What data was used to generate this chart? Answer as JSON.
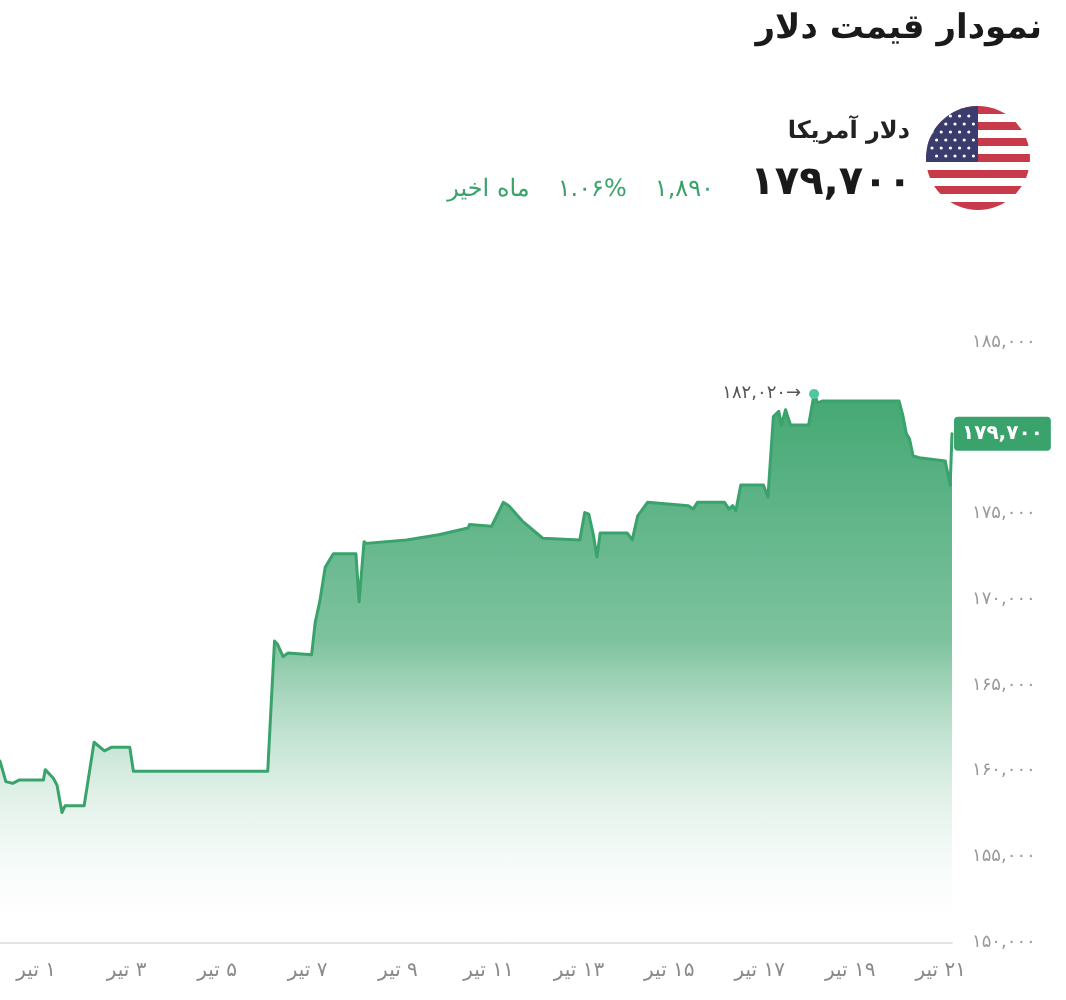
{
  "chart_data": {
    "type": "area",
    "title": "نمودار قیمت دلار",
    "subtitle": "دلار آمریکا",
    "x": [
      0.2,
      0.33,
      0.48,
      0.63,
      1.16,
      1.2,
      1.38,
      1.46,
      1.57,
      1.64,
      2.06,
      2.28,
      2.51,
      2.66,
      3.07,
      3.15,
      6.12,
      6.19,
      6.27,
      6.34,
      6.46,
      6.57,
      7.09,
      7.17,
      7.27,
      7.39,
      7.57,
      8.07,
      8.14,
      8.25,
      8.29,
      9.19,
      9.9,
      10.55,
      10.58,
      11.07,
      11.33,
      11.45,
      11.75,
      12.2,
      13.02,
      13.13,
      13.22,
      13.32,
      13.4,
      13.47,
      14.07,
      14.18,
      14.3,
      14.52,
      15.42,
      15.53,
      15.62,
      16.22,
      16.32,
      16.4,
      16.47,
      16.58,
      17.08,
      17.18,
      17.3,
      17.42,
      17.48,
      17.57,
      17.68,
      18.08,
      18.2,
      18.28,
      18.38,
      20.08,
      20.16,
      20.24,
      20.31,
      20.39,
      20.53,
      21.1,
      21.21,
      21.25
    ],
    "values": [
      160600,
      159400,
      159300,
      159500,
      159500,
      160100,
      159600,
      159200,
      157600,
      158000,
      158000,
      161700,
      161200,
      161400,
      161400,
      160000,
      160000,
      163600,
      167600,
      167400,
      166700,
      166900,
      166800,
      168700,
      169900,
      171900,
      172700,
      172700,
      169900,
      173400,
      173300,
      173500,
      173800,
      174200,
      174400,
      174300,
      175700,
      175500,
      174600,
      173600,
      173500,
      175100,
      175000,
      173800,
      172500,
      173900,
      173900,
      173500,
      174900,
      175700,
      175500,
      175300,
      175700,
      175700,
      175300,
      175500,
      175200,
      176700,
      176700,
      176000,
      180700,
      181000,
      180200,
      181100,
      180200,
      180200,
      182020,
      181500,
      181600,
      181600,
      180800,
      179700,
      179400,
      178400,
      178300,
      178100,
      176700,
      179700
    ],
    "color": "#3aa36c",
    "marker": "none",
    "xlim": [
      0.2,
      21.25
    ],
    "xticks": [
      {
        "value": 1,
        "label": "۱ تیر"
      },
      {
        "value": 3,
        "label": "۳ تیر"
      },
      {
        "value": 5,
        "label": "۵ تیر"
      },
      {
        "value": 7,
        "label": "۷ تیر"
      },
      {
        "value": 9,
        "label": "۹ تیر"
      },
      {
        "value": 11,
        "label": "۱۱ تیر"
      },
      {
        "value": 13,
        "label": "۱۳ تیر"
      },
      {
        "value": 15,
        "label": "۱۵ تیر"
      },
      {
        "value": 17,
        "label": "۱۷ تیر"
      },
      {
        "value": 19,
        "label": "۱۹ تیر"
      },
      {
        "value": 21,
        "label": "۲۱ تیر"
      }
    ],
    "ylim": [
      150000,
      185000
    ],
    "yticks": [
      {
        "value": 150000,
        "label": "۱۵۰,۰۰۰"
      },
      {
        "value": 155000,
        "label": "۱۵۵,۰۰۰"
      },
      {
        "value": 160000,
        "label": "۱۶۰,۰۰۰"
      },
      {
        "value": 165000,
        "label": "۱۶۵,۰۰۰"
      },
      {
        "value": 170000,
        "label": "۱۷۰,۰۰۰"
      },
      {
        "value": 175000,
        "label": "۱۷۵,۰۰۰"
      },
      {
        "value": 185000,
        "label": "۱۸۵,۰۰۰"
      }
    ],
    "annotations": [
      "۱۷۹,۷۰۰",
      "۱,۸۹۰",
      "۱.۰۶%",
      "ماه اخیر",
      {
        "text": "۱۸۲,۰۲۰→",
        "x": 18.2,
        "y": 182020
      },
      {
        "text": "۱۷۹,۷۰۰",
        "x": 21.25,
        "y": 179700
      }
    ]
  }
}
